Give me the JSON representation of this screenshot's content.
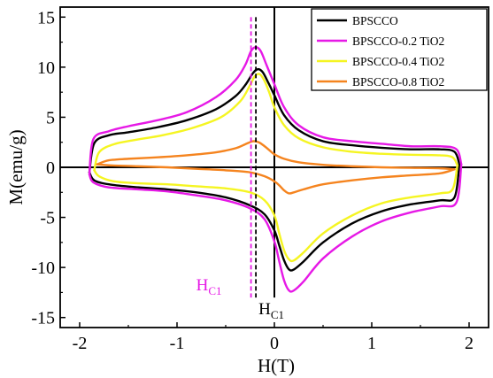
{
  "chart_data": {
    "type": "line",
    "xlabel": "H(T)",
    "ylabel": "M(emu/g)",
    "xlim": [
      -2.2,
      2.2
    ],
    "ylim": [
      -16,
      16
    ],
    "x_ticks": [
      -2,
      -1,
      0,
      1,
      2
    ],
    "x_tick_labels": [
      "-2",
      "-1",
      "0",
      "1",
      "2"
    ],
    "y_ticks": [
      -15,
      -10,
      -5,
      0,
      5,
      10,
      15
    ],
    "y_tick_labels": [
      "-15",
      "-10",
      "-5",
      "0",
      "5",
      "10",
      "15"
    ],
    "grid": false,
    "legend_position": "top-right",
    "series": [
      {
        "name": "BPSCCO",
        "color": "#000000",
        "upper": {
          "x": [
            -1.9,
            -1.85,
            -1.7,
            -1.5,
            -1.2,
            -0.9,
            -0.6,
            -0.4,
            -0.3,
            -0.22,
            -0.17,
            -0.12,
            -0.06,
            0.0,
            0.1,
            0.25,
            0.5,
            0.8,
            1.1,
            1.4,
            1.7,
            1.85,
            1.9
          ],
          "y": [
            -0.5,
            2.4,
            3.2,
            3.5,
            4.0,
            4.7,
            5.8,
            7.1,
            8.2,
            9.4,
            9.8,
            9.5,
            8.4,
            7.2,
            5.2,
            3.7,
            2.6,
            2.2,
            1.95,
            1.8,
            1.8,
            1.55,
            0.3
          ]
        },
        "lower": {
          "x": [
            1.9,
            1.85,
            1.7,
            1.4,
            1.1,
            0.8,
            0.5,
            0.3,
            0.2,
            0.15,
            0.1,
            0.05,
            0.0,
            -0.1,
            -0.25,
            -0.5,
            -0.8,
            -1.1,
            -1.4,
            -1.7,
            -1.85,
            -1.9
          ],
          "y": [
            0.3,
            -3.0,
            -3.3,
            -3.7,
            -4.4,
            -5.6,
            -7.5,
            -9.4,
            -10.2,
            -10.2,
            -9.3,
            -7.8,
            -6.3,
            -4.7,
            -3.8,
            -3.0,
            -2.5,
            -2.2,
            -2.0,
            -1.7,
            -1.3,
            -0.5
          ]
        }
      },
      {
        "name": "BPSCCO-0.2 TiO2",
        "color": "#e619e6",
        "upper": {
          "x": [
            -1.9,
            -1.86,
            -1.7,
            -1.5,
            -1.2,
            -0.9,
            -0.6,
            -0.4,
            -0.3,
            -0.24,
            -0.19,
            -0.14,
            -0.08,
            0.0,
            0.1,
            0.25,
            0.5,
            0.8,
            1.1,
            1.4,
            1.7,
            1.87,
            1.92
          ],
          "y": [
            -0.7,
            2.8,
            3.6,
            4.1,
            4.7,
            5.5,
            7.0,
            8.7,
            10.2,
            11.6,
            12.0,
            11.6,
            10.2,
            8.3,
            6.0,
            4.2,
            3.0,
            2.6,
            2.35,
            2.1,
            2.1,
            1.8,
            0.3
          ]
        },
        "lower": {
          "x": [
            1.92,
            1.87,
            1.7,
            1.4,
            1.1,
            0.8,
            0.5,
            0.3,
            0.2,
            0.15,
            0.1,
            0.05,
            0.0,
            -0.1,
            -0.25,
            -0.5,
            -0.8,
            -1.1,
            -1.4,
            -1.7,
            -1.86,
            -1.9
          ],
          "y": [
            0.3,
            -3.5,
            -3.9,
            -4.5,
            -5.4,
            -6.9,
            -9.1,
            -11.4,
            -12.3,
            -12.3,
            -11.3,
            -9.4,
            -7.4,
            -5.2,
            -4.1,
            -3.3,
            -2.8,
            -2.4,
            -2.2,
            -2.0,
            -1.5,
            -0.7
          ]
        }
      },
      {
        "name": "BPSCCO-0.4 TiO2",
        "color": "#f5f522",
        "upper": {
          "x": [
            -1.85,
            -1.8,
            -1.65,
            -1.45,
            -1.15,
            -0.85,
            -0.55,
            -0.35,
            -0.25,
            -0.2,
            -0.15,
            -0.1,
            -0.05,
            0.0,
            0.1,
            0.25,
            0.5,
            0.8,
            1.1,
            1.4,
            1.7,
            1.83,
            1.88
          ],
          "y": [
            -0.3,
            1.5,
            2.3,
            2.7,
            3.2,
            3.9,
            5.0,
            6.6,
            8.2,
            9.1,
            9.3,
            8.6,
            7.4,
            6.0,
            4.2,
            2.9,
            2.0,
            1.55,
            1.35,
            1.25,
            1.2,
            1.0,
            0.2
          ]
        },
        "lower": {
          "x": [
            1.88,
            1.83,
            1.7,
            1.4,
            1.1,
            0.8,
            0.5,
            0.3,
            0.2,
            0.15,
            0.1,
            0.05,
            0.0,
            -0.1,
            -0.25,
            -0.5,
            -0.8,
            -1.1,
            -1.4,
            -1.65,
            -1.8,
            -1.85
          ],
          "y": [
            0.2,
            -2.2,
            -2.6,
            -3.0,
            -3.6,
            -4.8,
            -6.6,
            -8.5,
            -9.3,
            -9.2,
            -8.3,
            -6.6,
            -4.8,
            -3.3,
            -2.5,
            -2.1,
            -1.9,
            -1.7,
            -1.6,
            -1.4,
            -0.9,
            -0.3
          ]
        }
      },
      {
        "name": "BPSCCO-0.8 TiO2",
        "color": "#f5841f",
        "upper": {
          "x": [
            -1.82,
            -1.7,
            -1.5,
            -1.2,
            -0.9,
            -0.6,
            -0.4,
            -0.3,
            -0.22,
            -0.16,
            -0.1,
            -0.05,
            0.0,
            0.1,
            0.25,
            0.5,
            0.8,
            1.1,
            1.4,
            1.7,
            1.85
          ],
          "y": [
            0.3,
            0.7,
            0.85,
            1.0,
            1.2,
            1.5,
            1.9,
            2.3,
            2.6,
            2.5,
            2.1,
            1.7,
            1.3,
            0.85,
            0.5,
            0.25,
            0.1,
            0.0,
            -0.05,
            -0.1,
            -0.2
          ]
        },
        "lower": {
          "x": [
            1.85,
            1.7,
            1.4,
            1.1,
            0.8,
            0.5,
            0.3,
            0.2,
            0.15,
            0.1,
            0.05,
            0.0,
            -0.1,
            -0.25,
            -0.5,
            -0.8,
            -1.1,
            -1.4,
            -1.7,
            -1.82
          ],
          "y": [
            -0.2,
            -0.6,
            -0.8,
            -1.0,
            -1.3,
            -1.7,
            -2.2,
            -2.5,
            -2.6,
            -2.3,
            -1.8,
            -1.4,
            -0.9,
            -0.5,
            -0.3,
            -0.15,
            0.0,
            0.1,
            0.2,
            0.3
          ]
        }
      }
    ],
    "reference_lines": [
      {
        "label_main": "H",
        "label_sub": "C1",
        "x": -0.19,
        "y_range": [
          -13,
          15
        ],
        "color": "#000000",
        "style": "dashed",
        "label_side": "right"
      },
      {
        "label_main": "H",
        "label_sub": "C1",
        "x": -0.24,
        "y_range": [
          -13,
          15
        ],
        "color": "#e619e6",
        "style": "dashed",
        "label_side": "left"
      }
    ]
  }
}
